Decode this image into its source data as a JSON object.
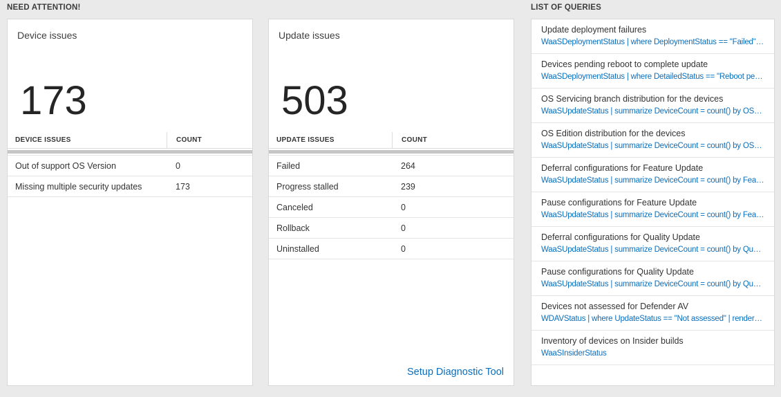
{
  "colors": {
    "page_bg": "#eaeaea",
    "card_border": "#d8d8d8",
    "link_blue": "#0a6ebc",
    "text_dark": "#333333",
    "scrollbar": "#c6c6c6",
    "row_border": "#e4e4e4"
  },
  "need_attention": {
    "header": "NEED ATTENTION!",
    "cards": [
      {
        "title": "Device issues",
        "big_number": "173",
        "table": {
          "headers": [
            "DEVICE ISSUES",
            "COUNT"
          ],
          "rows": [
            {
              "label": "Out of support OS Version",
              "count": "0"
            },
            {
              "label": "Missing multiple security updates",
              "count": "173"
            }
          ]
        }
      },
      {
        "title": "Update issues",
        "big_number": "503",
        "table": {
          "headers": [
            "UPDATE ISSUES",
            "COUNT"
          ],
          "rows": [
            {
              "label": "Failed",
              "count": "264"
            },
            {
              "label": "Progress stalled",
              "count": "239"
            },
            {
              "label": "Canceled",
              "count": "0"
            },
            {
              "label": "Rollback",
              "count": "0"
            },
            {
              "label": "Uninstalled",
              "count": "0"
            }
          ]
        },
        "footer_link": "Setup Diagnostic Tool"
      }
    ]
  },
  "queries": {
    "header": "LIST OF QUERIES",
    "items": [
      {
        "title": "Update deployment failures",
        "query": "WaaSDeploymentStatus | where DeploymentStatus == \"Failed\" |..."
      },
      {
        "title": "Devices pending reboot to complete update",
        "query": "WaaSDeploymentStatus | where DetailedStatus == \"Reboot pend..."
      },
      {
        "title": "OS Servicing branch distribution for the devices",
        "query": "WaaSUpdateStatus | summarize DeviceCount = count() by OSSer..."
      },
      {
        "title": "OS Edition distribution for the devices",
        "query": "WaaSUpdateStatus | summarize DeviceCount = count() by OSEdit..."
      },
      {
        "title": "Deferral configurations for Feature Update",
        "query": "WaaSUpdateStatus | summarize DeviceCount = count() by Featur..."
      },
      {
        "title": "Pause configurations for Feature Update",
        "query": "WaaSUpdateStatus | summarize DeviceCount = count() by Featur..."
      },
      {
        "title": "Deferral configurations for Quality Update",
        "query": "WaaSUpdateStatus | summarize DeviceCount = count() by Qualit..."
      },
      {
        "title": "Pause configurations for Quality Update",
        "query": "WaaSUpdateStatus | summarize DeviceCount = count() by Qualit..."
      },
      {
        "title": "Devices not assessed for Defender AV",
        "query": "WDAVStatus | where UpdateStatus == \"Not assessed\" | render ta..."
      },
      {
        "title": "Inventory of devices on Insider builds",
        "query": "WaaSInsiderStatus"
      }
    ]
  }
}
